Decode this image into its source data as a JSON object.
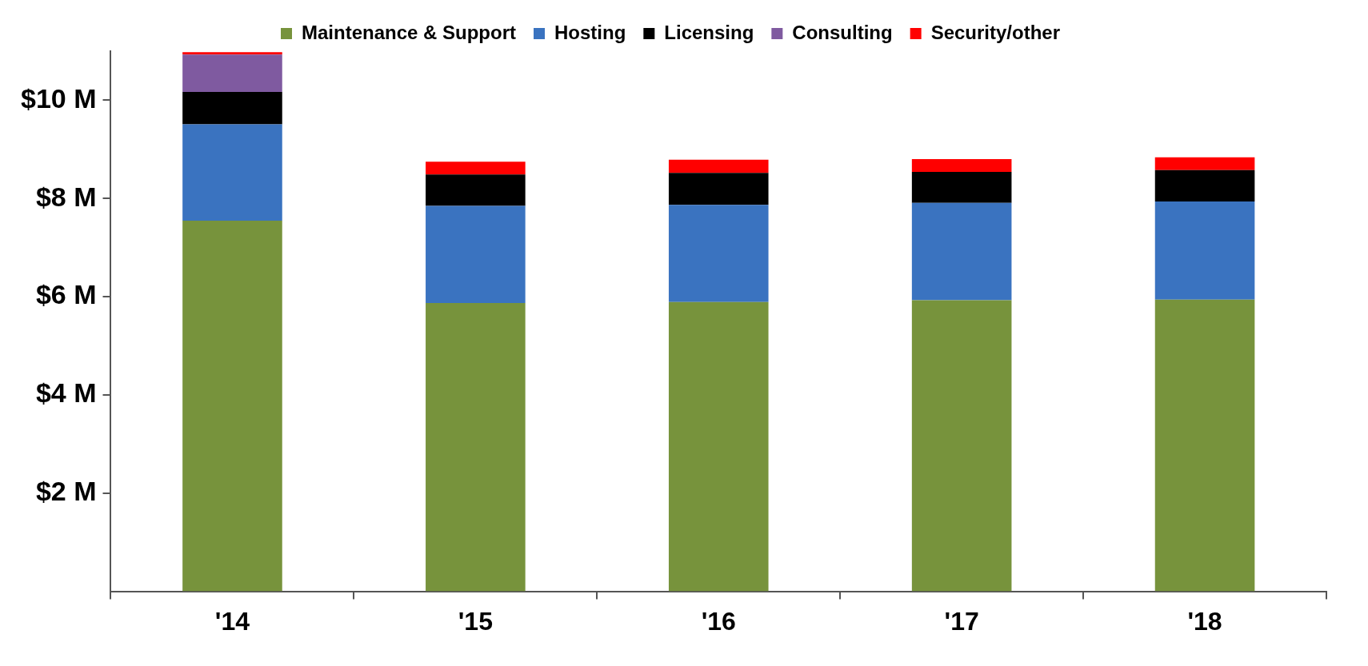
{
  "chart_data": {
    "type": "bar",
    "stacked": true,
    "categories": [
      "'14",
      "'15",
      "'16",
      "'17",
      "'18"
    ],
    "series": [
      {
        "name": "Maintenance & Support",
        "color": "#77933c",
        "values": [
          7.55,
          5.87,
          5.89,
          5.93,
          5.94
        ]
      },
      {
        "name": "Hosting",
        "color": "#3a73c0",
        "values": [
          1.96,
          1.98,
          1.98,
          1.98,
          2.0
        ]
      },
      {
        "name": "Licensing",
        "color": "#000000",
        "values": [
          0.66,
          0.64,
          0.65,
          0.63,
          0.64
        ]
      },
      {
        "name": "Consulting",
        "color": "#7f5aa0",
        "values": [
          0.76,
          0,
          0,
          0,
          0
        ]
      },
      {
        "name": "Security/other",
        "color": "#ff0000",
        "values": [
          0.05,
          0.26,
          0.27,
          0.26,
          0.26
        ]
      }
    ],
    "ylim": [
      0,
      11
    ],
    "yticks": [
      {
        "value": 2,
        "label": "$2 M"
      },
      {
        "value": 4,
        "label": "$4 M"
      },
      {
        "value": 6,
        "label": "$6 M"
      },
      {
        "value": 8,
        "label": "$8 M"
      },
      {
        "value": 10,
        "label": "$10 M"
      }
    ],
    "grid": false,
    "legend": "top"
  }
}
